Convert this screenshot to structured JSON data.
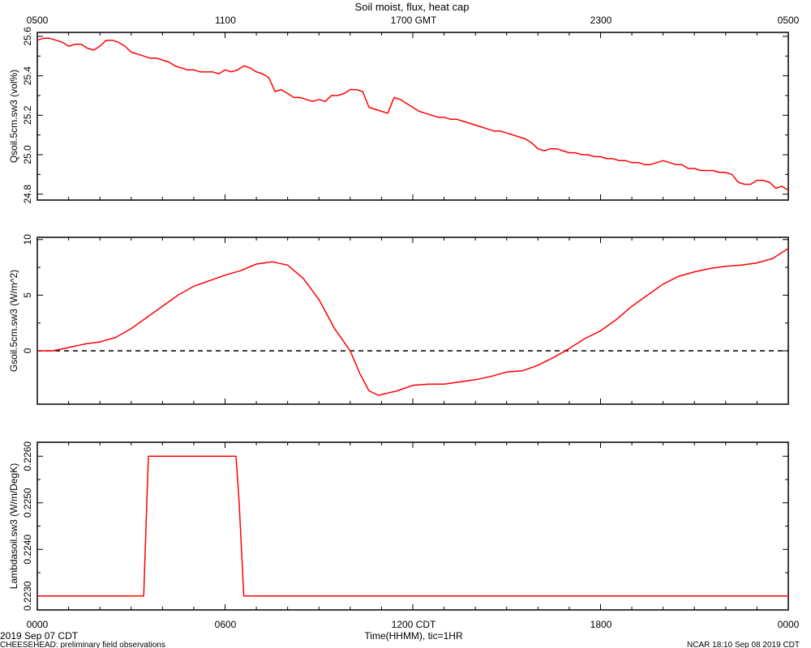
{
  "title": "Soil moist, flux, heat cap",
  "top_axis": {
    "ticks": [
      "0500",
      "1100",
      "1700 GMT",
      "2300",
      "0500"
    ]
  },
  "bottom_axis": {
    "ticks": [
      "0000",
      "0600",
      "1200 CDT",
      "1800",
      "0000"
    ],
    "label": "Time(HHMM), tic=1HR"
  },
  "footer": {
    "left_date": "2019 Sep 07 CDT",
    "left_note": "CHEESEHEAD: preliminary field observations",
    "right_note": "NCAR 18:10 Sep 08 2019 CDT"
  },
  "colors": {
    "series": "#ff0000",
    "axes": "#000000",
    "zero_line": "#000000"
  },
  "chart_data": [
    {
      "type": "line",
      "ylabel": "Qsoil.5cm.sw3 (vol%)",
      "ylim": [
        24.77,
        25.62
      ],
      "yticks": [
        24.8,
        25.0,
        25.2,
        25.4,
        25.6
      ],
      "ytick_labels": [
        "24.8",
        "25.0",
        "25.2",
        "25.4",
        "25.6"
      ],
      "xlim": [
        0,
        24
      ],
      "zero_line": false,
      "series": [
        {
          "x": [
            0,
            0.2,
            0.4,
            0.6,
            0.8,
            1.0,
            1.2,
            1.4,
            1.6,
            1.8,
            2.0,
            2.2,
            2.4,
            2.6,
            2.8,
            3.0,
            3.2,
            3.4,
            3.6,
            3.8,
            4.0,
            4.2,
            4.4,
            4.6,
            4.8,
            5.0,
            5.2,
            5.4,
            5.6,
            5.8,
            6.0,
            6.2,
            6.4,
            6.6,
            6.8,
            7.0,
            7.2,
            7.4,
            7.6,
            7.8,
            7.9,
            8.0,
            8.2,
            8.4,
            8.6,
            8.8,
            9.0,
            9.2,
            9.4,
            9.6,
            9.8,
            10.0,
            10.2,
            10.4,
            10.6,
            10.8,
            11.0,
            11.2,
            11.4,
            11.6,
            11.8,
            12.0,
            12.2,
            12.4,
            12.6,
            12.8,
            13.0,
            13.2,
            13.4,
            13.6,
            13.8,
            14.0,
            14.2,
            14.4,
            14.6,
            14.8,
            15.0,
            15.2,
            15.4,
            15.6,
            15.8,
            16.0,
            16.2,
            16.4,
            16.6,
            16.8,
            17.0,
            17.2,
            17.4,
            17.6,
            17.8,
            18.0,
            18.2,
            18.4,
            18.6,
            18.8,
            19.0,
            19.2,
            19.4,
            19.6,
            19.8,
            20.0,
            20.2,
            20.4,
            20.6,
            20.8,
            21.0,
            21.2,
            21.4,
            21.6,
            21.8,
            22.0,
            22.2,
            22.4,
            22.6,
            22.8,
            23.0,
            23.2,
            23.4,
            23.6,
            23.8,
            24.0
          ],
          "values": [
            25.58,
            25.59,
            25.59,
            25.58,
            25.57,
            25.55,
            25.56,
            25.56,
            25.54,
            25.53,
            25.55,
            25.58,
            25.58,
            25.57,
            25.55,
            25.52,
            25.51,
            25.5,
            25.49,
            25.49,
            25.48,
            25.47,
            25.45,
            25.44,
            25.43,
            25.43,
            25.42,
            25.42,
            25.42,
            25.41,
            25.43,
            25.42,
            25.43,
            25.45,
            25.44,
            25.42,
            25.41,
            25.39,
            25.32,
            25.33,
            25.32,
            25.31,
            25.29,
            25.29,
            25.28,
            25.27,
            25.28,
            25.27,
            25.3,
            25.3,
            25.31,
            25.33,
            25.33,
            25.32,
            25.24,
            25.23,
            25.22,
            25.21,
            25.29,
            25.28,
            25.26,
            25.24,
            25.22,
            25.21,
            25.2,
            25.19,
            25.19,
            25.18,
            25.18,
            25.17,
            25.16,
            25.15,
            25.14,
            25.13,
            25.12,
            25.12,
            25.11,
            25.1,
            25.09,
            25.08,
            25.06,
            25.03,
            25.02,
            25.03,
            25.03,
            25.02,
            25.01,
            25.01,
            25.0,
            25.0,
            24.99,
            24.99,
            24.98,
            24.98,
            24.97,
            24.97,
            24.96,
            24.96,
            24.95,
            24.95,
            24.96,
            24.97,
            24.96,
            24.95,
            24.95,
            24.93,
            24.93,
            24.92,
            24.92,
            24.92,
            24.91,
            24.91,
            24.9,
            24.86,
            24.85,
            24.85,
            24.87,
            24.87,
            24.86,
            24.83,
            24.84,
            24.82
          ]
        }
      ]
    },
    {
      "type": "line",
      "ylabel": "Gsoil.5cm.sw3 (W/m^2)",
      "ylim": [
        -4.8,
        10.2
      ],
      "yticks": [
        0,
        5,
        10
      ],
      "ytick_labels": [
        "0",
        "5",
        "10"
      ],
      "xlim": [
        0,
        24
      ],
      "zero_line": true,
      "series": [
        {
          "x": [
            0,
            0.5,
            1.0,
            1.5,
            2.0,
            2.5,
            3.0,
            3.5,
            4.0,
            4.5,
            5.0,
            5.5,
            6.0,
            6.5,
            7.0,
            7.5,
            8.0,
            8.5,
            9.0,
            9.5,
            10.0,
            10.3,
            10.6,
            10.9,
            11.2,
            11.5,
            12.0,
            12.5,
            13.0,
            13.5,
            14.0,
            14.5,
            15.0,
            15.5,
            16.0,
            16.5,
            17.0,
            17.5,
            18.0,
            18.5,
            19.0,
            19.5,
            20.0,
            20.5,
            21.0,
            21.5,
            22.0,
            22.5,
            23.0,
            23.5,
            24.0
          ],
          "values": [
            0.0,
            0.0,
            0.3,
            0.6,
            0.8,
            1.2,
            2.0,
            3.0,
            4.0,
            5.0,
            5.8,
            6.3,
            6.8,
            7.2,
            7.8,
            8.0,
            7.7,
            6.5,
            4.6,
            2.0,
            0.0,
            -2.0,
            -3.6,
            -4.0,
            -3.8,
            -3.6,
            -3.1,
            -3.0,
            -3.0,
            -2.8,
            -2.6,
            -2.3,
            -1.9,
            -1.8,
            -1.3,
            -0.6,
            0.2,
            1.1,
            1.8,
            2.8,
            4.0,
            5.0,
            6.0,
            6.7,
            7.1,
            7.4,
            7.6,
            7.7,
            7.9,
            8.3,
            9.2
          ]
        }
      ]
    },
    {
      "type": "line",
      "ylabel": "Lambdasoil.sw3 (W/m/DegK)",
      "ylim": [
        0.2227,
        0.2263
      ],
      "yticks": [
        0.223,
        0.224,
        0.225,
        0.226
      ],
      "ytick_labels": [
        "0.2230",
        "0.2240",
        "0.2250",
        "0.2260"
      ],
      "xlim": [
        0,
        24
      ],
      "zero_line": false,
      "series": [
        {
          "x": [
            0,
            3.4,
            3.5,
            3.55,
            6.35,
            6.45,
            6.6,
            24.0
          ],
          "values": [
            0.223,
            0.223,
            0.225,
            0.226,
            0.226,
            0.225,
            0.223,
            0.223
          ]
        }
      ]
    }
  ]
}
